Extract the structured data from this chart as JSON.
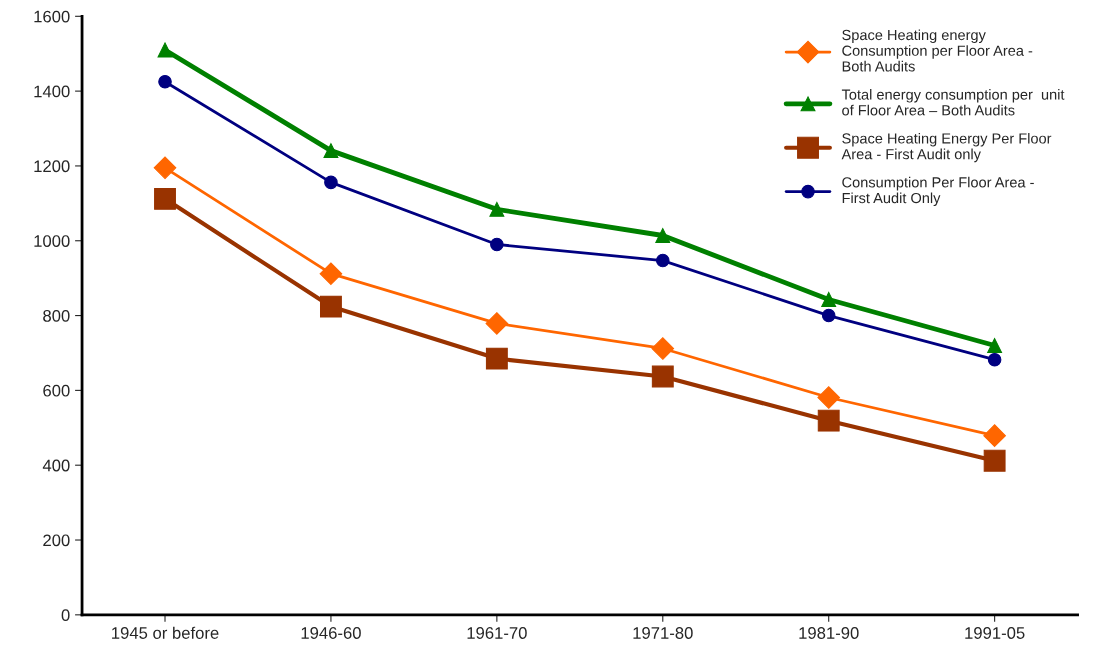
{
  "chart_data": {
    "type": "line",
    "categories": [
      "1945 or before",
      "1946-60",
      "1961-70",
      "1971-80",
      "1981-90",
      "1991-05"
    ],
    "ylim": [
      0,
      1600
    ],
    "yticks": [
      0,
      200,
      400,
      600,
      800,
      1000,
      1200,
      1400,
      1600
    ],
    "grid": false,
    "legend": "top right",
    "line_style": "solid",
    "series": [
      {
        "name": "Space Heating energy\nConsumption per Floor Area -\nBoth Audits",
        "color": "#ff6600",
        "marker": "diamond",
        "values": [
          1195,
          912,
          779,
          712,
          581,
          479
        ]
      },
      {
        "name": "Total energy consumption per  unit\nof Floor Area – Both Audits",
        "color": "#008000",
        "marker": "triangle",
        "values": [
          1510,
          1241,
          1084,
          1014,
          843,
          720
        ]
      },
      {
        "name": "Space Heating Energy Per Floor\nArea - First Audit only",
        "color": "#993300",
        "marker": "square",
        "values": [
          1112,
          824,
          685,
          637,
          519,
          412
        ]
      },
      {
        "name": "Consumption Per Floor Area -\nFirst Audit Only",
        "color": "#000080",
        "marker": "circle",
        "values": [
          1425,
          1156,
          990,
          947,
          800,
          682
        ]
      }
    ]
  }
}
